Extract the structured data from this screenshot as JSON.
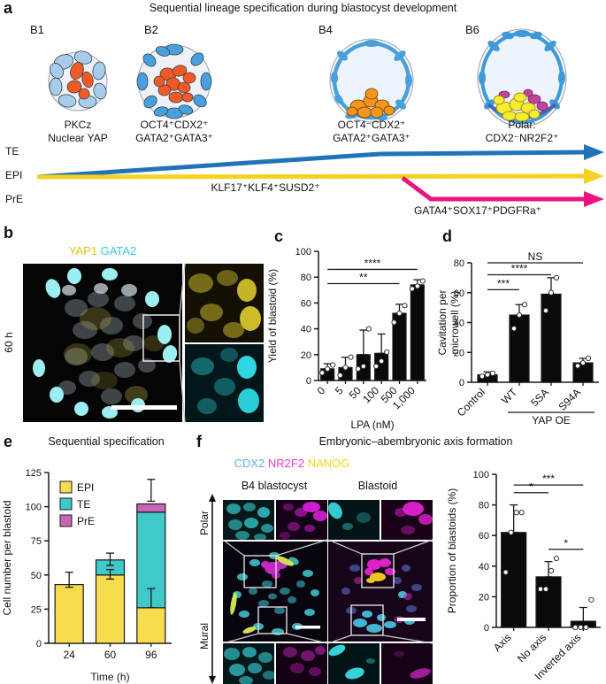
{
  "panel_a": {
    "label": "a",
    "title": "Sequential lineage specification during blastocyst development",
    "stages": [
      {
        "name": "B1",
        "caption_line1": "PKCz",
        "caption_line2": "Nuclear YAP"
      },
      {
        "name": "B2",
        "caption_line1": "OCT4⁺CDX2⁺",
        "caption_line2": "GATA2⁺GATA3⁺"
      },
      {
        "name": "B4",
        "caption_line1": "OCT4⁻CDX2⁺",
        "caption_line2": "GATA2⁺GATA3⁺"
      },
      {
        "name": "B6",
        "caption_line1": "Polar:",
        "caption_line2": "CDX2⁻NR2F2⁺"
      }
    ],
    "lineage_te": {
      "label": "TE",
      "color": "#2173b9"
    },
    "lineage_epi": {
      "label": "EPI",
      "color": "#f5d21f"
    },
    "lineage_pre": {
      "label": "PrE",
      "color": "#ea1380"
    },
    "epi_markers": "KLF17⁺KLF4⁺SUSD2⁺",
    "pre_markers": "GATA4⁺SOX17⁺PDGFRa⁺"
  },
  "panel_b": {
    "label": "b",
    "stain_yap1": {
      "text": "YAP1",
      "color": "#e0c414"
    },
    "stain_gata2": {
      "text": "GATA2",
      "color": "#3fc8da"
    },
    "timepoint": "60 h"
  },
  "panel_c": {
    "label": "c"
  },
  "panel_d": {
    "label": "d"
  },
  "panel_e": {
    "label": "e",
    "title": "Sequential specification"
  },
  "panel_f": {
    "label": "f",
    "title": "Embryonic–abembryonic axis formation",
    "stain_cdx2": {
      "text": "CDX2",
      "color": "#6babe8"
    },
    "stain_nr2f2": {
      "text": "NR2F2",
      "color": "#e838cc"
    },
    "stain_nanog": {
      "text": "NANOG",
      "color": "#f2d51b"
    },
    "column_left": "B4 blastocyst",
    "column_right": "Blastoid",
    "axis_top": "Polar",
    "axis_bottom": "Mural"
  },
  "chart_data": [
    {
      "id": "c",
      "type": "bar",
      "title": "",
      "ylabel": "Yield of blastoid (%)",
      "xlabel": "LPA (nM)",
      "ylim": [
        0,
        100
      ],
      "yticks": [
        0,
        20,
        40,
        60,
        80,
        100
      ],
      "categories": [
        "0",
        "5",
        "50",
        "100",
        "500",
        "1,000"
      ],
      "values": [
        9,
        10,
        20,
        21,
        52,
        74
      ],
      "errors": [
        {
          "i": 0,
          "lo": 9,
          "hi": 13
        },
        {
          "i": 1,
          "lo": 10,
          "hi": 18
        },
        {
          "i": 2,
          "lo": 20,
          "hi": 39
        },
        {
          "i": 3,
          "lo": 21,
          "hi": 36
        },
        {
          "i": 4,
          "lo": 52,
          "hi": 59
        },
        {
          "i": 5,
          "lo": 74,
          "hi": 78
        }
      ],
      "points": [
        [
          6,
          9,
          12
        ],
        [
          4,
          10,
          18
        ],
        [
          9,
          11,
          40
        ],
        [
          11,
          15,
          22
        ],
        [
          45,
          52,
          58
        ],
        [
          71,
          73,
          77
        ]
      ],
      "sig": [
        {
          "a": 0,
          "b": 4,
          "y": 75,
          "label": "**"
        },
        {
          "a": 0,
          "b": 5,
          "y": 86,
          "label": "****"
        }
      ],
      "bar_color": "#0a0a0a",
      "grid": false,
      "tick_rotate": -45
    },
    {
      "id": "d",
      "type": "bar",
      "title": "",
      "ylabel": [
        "Cavitation per",
        "microwell (%)"
      ],
      "xlabel": "",
      "ylim": [
        0,
        80
      ],
      "yticks": [
        0,
        20,
        40,
        60,
        80
      ],
      "categories": [
        "Control",
        "WT",
        "5SA",
        "S94A"
      ],
      "values": [
        5,
        45,
        59,
        13
      ],
      "errors": [
        {
          "i": 0,
          "lo": 5,
          "hi": 7
        },
        {
          "i": 1,
          "lo": 45,
          "hi": 52
        },
        {
          "i": 2,
          "lo": 59,
          "hi": 70
        },
        {
          "i": 3,
          "lo": 13,
          "hi": 16
        }
      ],
      "points": [
        [
          4,
          5,
          6
        ],
        [
          36,
          45,
          52
        ],
        [
          48,
          60,
          70
        ],
        [
          11,
          13,
          16
        ]
      ],
      "sig": [
        {
          "a": 0,
          "b": 1,
          "y": 62,
          "label": "***"
        },
        {
          "a": 0,
          "b": 2,
          "y": 72,
          "label": "****"
        },
        {
          "a": 0,
          "b": 3,
          "y": 80,
          "label": "NS"
        }
      ],
      "group": {
        "a": 1,
        "b": 3,
        "label": "YAP OE"
      },
      "bar_color": "#0a0a0a",
      "grid": false,
      "tick_rotate": -45
    },
    {
      "id": "e",
      "type": "stacked-bar",
      "title": "Sequential specification",
      "ylabel": "Cell number per blastoid",
      "xlabel": "Time (h)",
      "ylim": [
        0,
        125
      ],
      "yticks": [
        0,
        25,
        50,
        75,
        100,
        125
      ],
      "categories": [
        "24",
        "60",
        "96"
      ],
      "series": [
        {
          "name": "EPI",
          "color": "#f8dc50",
          "values": [
            43,
            50,
            26
          ]
        },
        {
          "name": "TE",
          "color": "#3fc9c9",
          "values": [
            0,
            11,
            70
          ]
        },
        {
          "name": "PrE",
          "color": "#cb66b6",
          "values": [
            0,
            0,
            6
          ]
        }
      ],
      "errors": [
        {
          "i": 0,
          "lo": 41,
          "hi": 52
        },
        {
          "i": 1,
          "lo": 47,
          "hi": 54
        },
        {
          "i": 1,
          "lo": 57,
          "hi": 66
        },
        {
          "i": 2,
          "lo": 26,
          "hi": 40
        },
        {
          "i": 2,
          "lo": 104,
          "hi": 120
        }
      ],
      "legend": true,
      "legend_position": "inside-top-left",
      "grid": false,
      "tick_rotate": 0
    },
    {
      "id": "f",
      "type": "bar",
      "title": "",
      "ylabel": "Proportion of blastoids (%)",
      "xlabel": "",
      "ylim": [
        0,
        100
      ],
      "yticks": [
        0,
        20,
        40,
        60,
        80,
        100
      ],
      "categories": [
        "Axis",
        "No axis",
        "Inverted axis"
      ],
      "values": [
        62,
        33,
        4
      ],
      "errors": [
        {
          "i": 0,
          "lo": 62,
          "hi": 80
        },
        {
          "i": 1,
          "lo": 33,
          "hi": 43
        },
        {
          "i": 2,
          "lo": 4,
          "hi": 13
        }
      ],
      "points": [
        [
          36,
          62,
          75,
          75
        ],
        [
          25,
          25,
          37,
          45
        ],
        [
          0,
          0,
          0,
          18
        ]
      ],
      "sig": [
        {
          "a": 0,
          "b": 1,
          "y": 88,
          "label": "*"
        },
        {
          "a": 0,
          "b": 2,
          "y": 93,
          "label": "***"
        },
        {
          "a": 1,
          "b": 2,
          "y": 51,
          "label": "*"
        }
      ],
      "bar_color": "#0a0a0a",
      "grid": false,
      "tick_rotate": -45
    }
  ]
}
